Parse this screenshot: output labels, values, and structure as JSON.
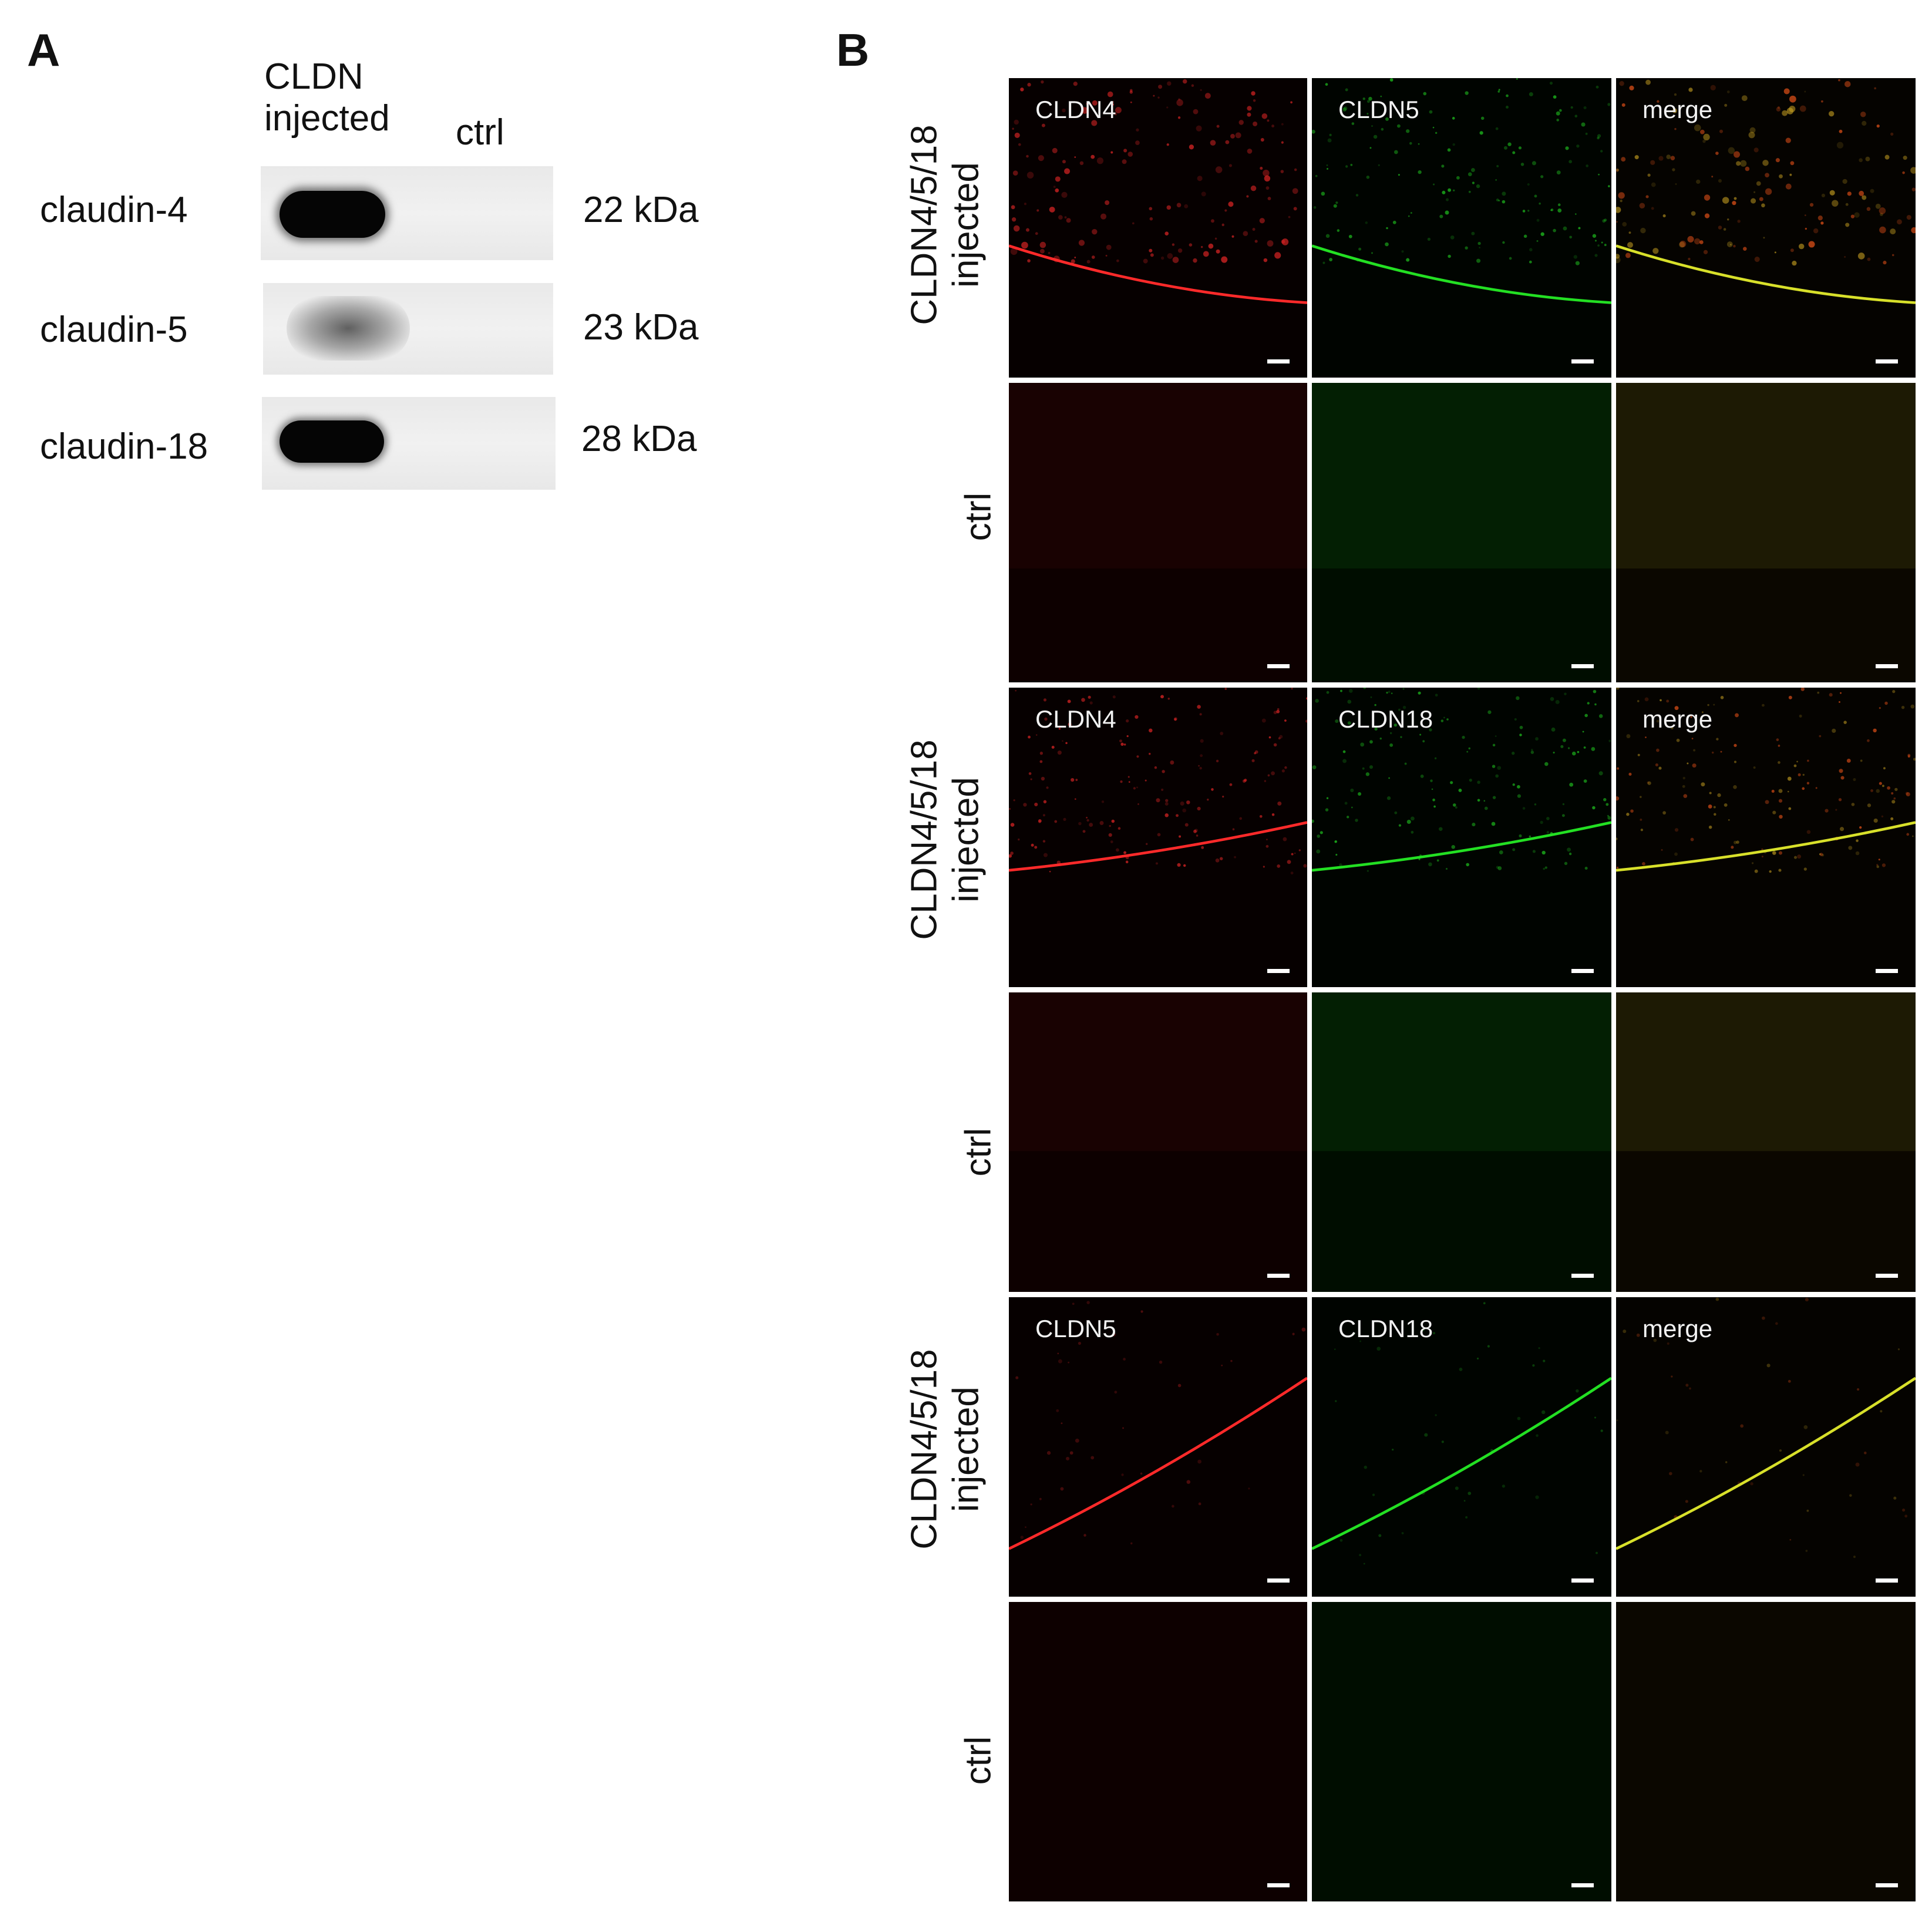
{
  "panel_a": {
    "letter": "A",
    "columns": {
      "injected_line1": "CLDN",
      "injected_line2": "injected",
      "ctrl": "ctrl"
    },
    "rows": [
      {
        "protein": "claudin-4",
        "size": "22 kDa",
        "injected_band": "strong",
        "ctrl_band": "none"
      },
      {
        "protein": "claudin-5",
        "size": "23 kDa",
        "injected_band": "weak",
        "ctrl_band": "none"
      },
      {
        "protein": "claudin-18",
        "size": "28 kDa",
        "injected_band": "strong",
        "ctrl_band": "none"
      }
    ]
  },
  "panel_b": {
    "letter": "B",
    "row_labels": {
      "injected_line1": "CLDN4/5/18",
      "injected_line2": "injected",
      "ctrl": "ctrl"
    },
    "groups": [
      {
        "channels": [
          "CLDN4",
          "CLDN5",
          "merge"
        ],
        "channel_colors": [
          "#ff2a2a",
          "#23e023",
          "#d8e02a"
        ]
      },
      {
        "channels": [
          "CLDN4",
          "CLDN18",
          "merge"
        ],
        "channel_colors": [
          "#ff2a2a",
          "#23e023",
          "#d8e02a"
        ]
      },
      {
        "channels": [
          "CLDN5",
          "CLDN18",
          "merge"
        ],
        "channel_colors": [
          "#ff2a2a",
          "#23e023",
          "#d8e02a"
        ]
      }
    ]
  }
}
